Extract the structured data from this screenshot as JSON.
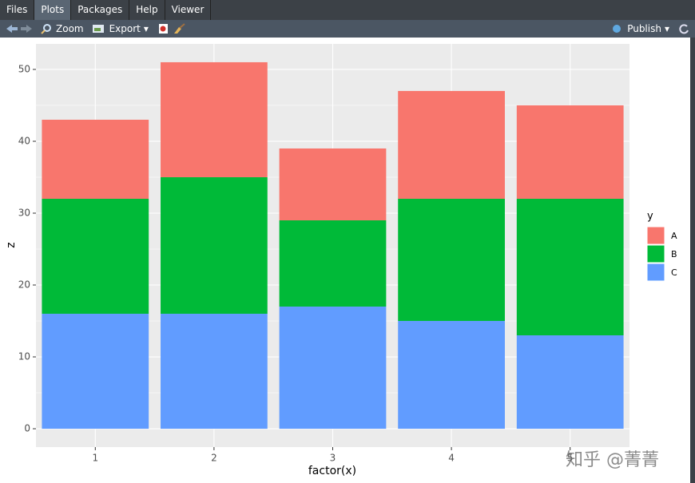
{
  "tabs": [
    "Files",
    "Plots",
    "Packages",
    "Help",
    "Viewer"
  ],
  "active_tab": 1,
  "toolbar": {
    "zoom": "Zoom",
    "export": "Export",
    "publish": "Publish"
  },
  "watermark": "知乎 @菁菁",
  "chart_data": {
    "type": "stacked-bar",
    "x_label": "factor(x)",
    "y_label": "z",
    "legend_title": "y",
    "categories": [
      "1",
      "2",
      "3",
      "4",
      "5"
    ],
    "series": [
      {
        "name": "A",
        "color": "#f8766d",
        "values": [
          11,
          16,
          10,
          15,
          13
        ]
      },
      {
        "name": "B",
        "color": "#00ba38",
        "values": [
          16,
          19,
          12,
          17,
          19
        ]
      },
      {
        "name": "C",
        "color": "#619cff",
        "values": [
          16,
          16,
          17,
          15,
          13
        ]
      }
    ],
    "ylim": [
      -2.55,
      53.55
    ],
    "yticks": [
      0,
      10,
      20,
      30,
      40,
      50
    ],
    "grid": true,
    "legend": "right"
  }
}
